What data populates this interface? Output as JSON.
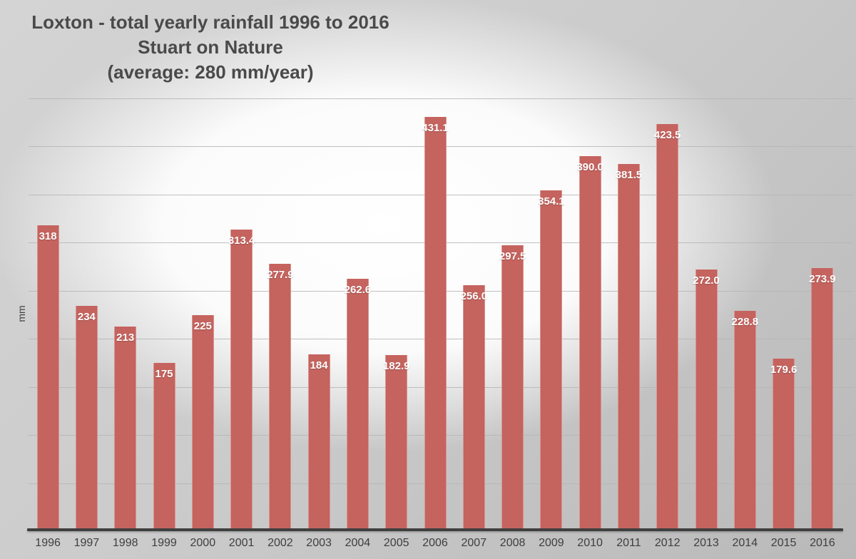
{
  "title": {
    "line1": "Loxton - total yearly rainfall 1996 to 2016",
    "line2": "Stuart on Nature",
    "line3": "(average: 280 mm/year)"
  },
  "chart_data": {
    "type": "bar",
    "title": "Loxton - total yearly rainfall 1996 to 2016",
    "subtitle": "Stuart on Nature",
    "annotation": "(average: 280 mm/year)",
    "average_mm_per_year": 280,
    "xlabel": "",
    "ylabel": "mm",
    "ylim": [
      0,
      450
    ],
    "gridline_step": 50,
    "grid": true,
    "legend": false,
    "categories": [
      "1996",
      "1997",
      "1998",
      "1999",
      "2000",
      "2001",
      "2002",
      "2003",
      "2004",
      "2005",
      "2006",
      "2007",
      "2008",
      "2009",
      "2010",
      "2011",
      "2012",
      "2013",
      "2014",
      "2015",
      "2016"
    ],
    "values": [
      318,
      234,
      213,
      175,
      225,
      313.4,
      277.9,
      184,
      262.6,
      182.9,
      431.1,
      256.0,
      297.5,
      354.1,
      390.0,
      381.5,
      423.5,
      272.0,
      228.8,
      179.6,
      273.9
    ],
    "value_labels": [
      "318",
      "234",
      "213",
      "175",
      "225",
      "313.4",
      "277.9",
      "184",
      "262.6",
      "182.9",
      "431.1",
      "256.0",
      "297.5",
      "354.1",
      "390.0",
      "381.5",
      "423.5",
      "272.0",
      "228.8",
      "179.6",
      "273.9"
    ]
  },
  "colors": {
    "bar": "#c5635e",
    "bar_label": "#ffffff",
    "title_text": "#4a4a4a",
    "axis_line": "#3f3f3f",
    "gridline": "#b5b5b5",
    "tick_text": "#3e3e3e"
  }
}
